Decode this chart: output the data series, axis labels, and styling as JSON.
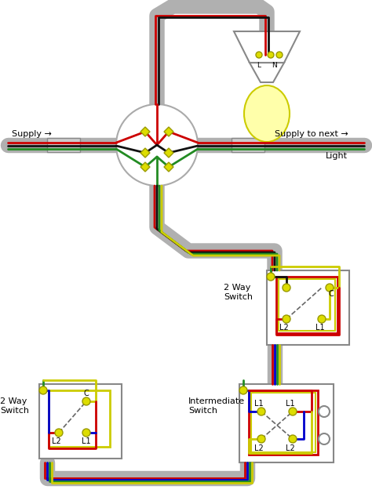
{
  "bg_color": "#ffffff",
  "cable_color": "#b0b0b0",
  "wire_red": "#cc0000",
  "wire_black": "#111111",
  "wire_green": "#228B22",
  "wire_yellow": "#cccc00",
  "wire_blue": "#0000cc",
  "terminal_fill": "#dddd00",
  "terminal_edge": "#999900",
  "switch_box_edge": "#888888",
  "supply_label": "Supply →",
  "supply_to_next_label": "Supply to next →",
  "light_label": "Light",
  "sw1_label": "2 Way\nSwitch",
  "sw2_label": "2 Way\nSwitch",
  "sw3_label": "Intermediate\nSwitch"
}
